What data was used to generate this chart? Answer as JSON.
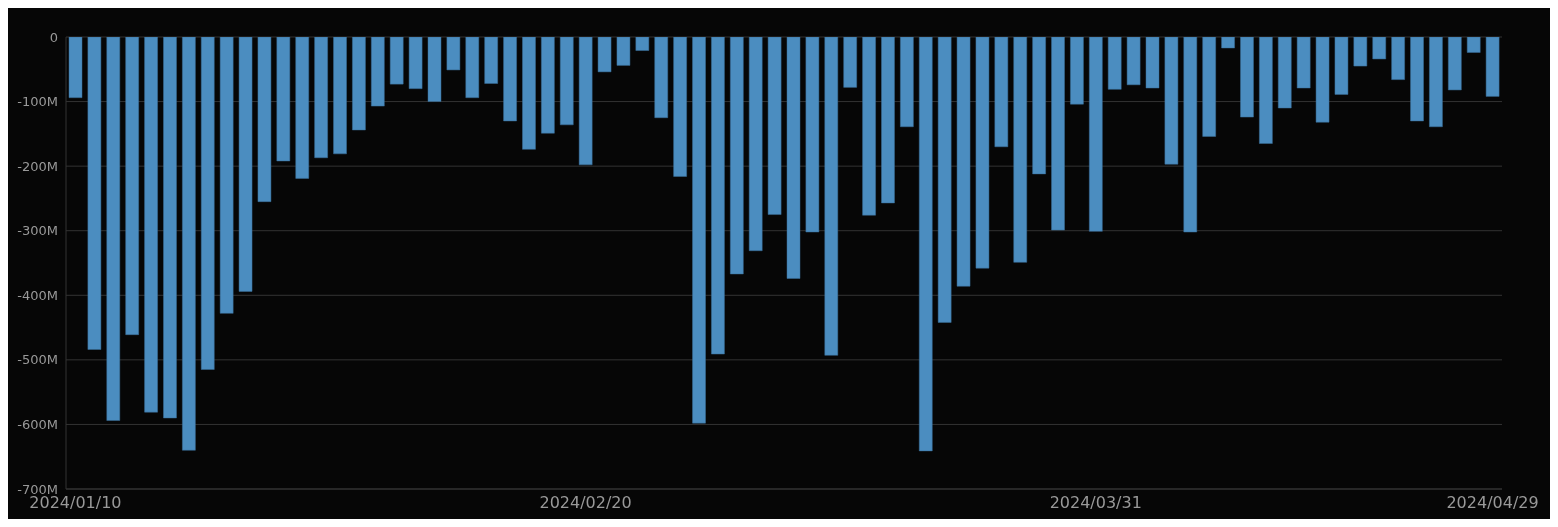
{
  "chart_data": {
    "type": "bar",
    "categories": [
      "2024/01/10",
      null,
      null,
      null,
      null,
      null,
      null,
      null,
      null,
      null,
      null,
      null,
      null,
      null,
      null,
      null,
      null,
      null,
      null,
      null,
      null,
      null,
      null,
      null,
      null,
      null,
      null,
      "2024/02/20",
      null,
      null,
      null,
      null,
      null,
      null,
      null,
      null,
      null,
      null,
      null,
      null,
      null,
      null,
      null,
      null,
      null,
      null,
      null,
      null,
      null,
      null,
      null,
      null,
      null,
      null,
      "2024/03/31",
      null,
      null,
      null,
      null,
      null,
      null,
      null,
      null,
      null,
      null,
      null,
      null,
      null,
      null,
      null,
      null,
      null,
      null,
      null,
      null,
      "2024/04/29"
    ],
    "values": [
      -94,
      -484,
      -594,
      -461,
      -581,
      -590,
      -640,
      -515,
      -428,
      -394,
      -255,
      -192,
      -219,
      -187,
      -181,
      -144,
      -107,
      -73,
      -80,
      -100,
      -51,
      -94,
      -72,
      -130,
      -174,
      -149,
      -136,
      -198,
      -54,
      -44,
      -21,
      -125,
      -216,
      -598,
      -491,
      -367,
      -331,
      -275,
      -374,
      -302,
      -493,
      -78,
      -276,
      -257,
      -139,
      -641,
      -442,
      -386,
      -358,
      -170,
      -349,
      -212,
      -299,
      -104,
      -301,
      -81,
      -74,
      -79,
      -197,
      -302,
      -154,
      -17,
      -124,
      -165,
      -110,
      -79,
      -132,
      -89,
      -45,
      -34,
      -66,
      -130,
      -139,
      -82,
      -24,
      -92
    ],
    "color": "#4b8dc0",
    "ylim": [
      -700,
      0
    ],
    "yticks": [
      {
        "value": -700,
        "label": "-700M"
      },
      {
        "value": -600,
        "label": "-600M"
      },
      {
        "value": -500,
        "label": "-500M"
      },
      {
        "value": -400,
        "label": "-400M"
      },
      {
        "value": -300,
        "label": "-300M"
      },
      {
        "value": -200,
        "label": "-200M"
      },
      {
        "value": -100,
        "label": "-100M"
      },
      0
    ],
    "grid": "y"
  }
}
